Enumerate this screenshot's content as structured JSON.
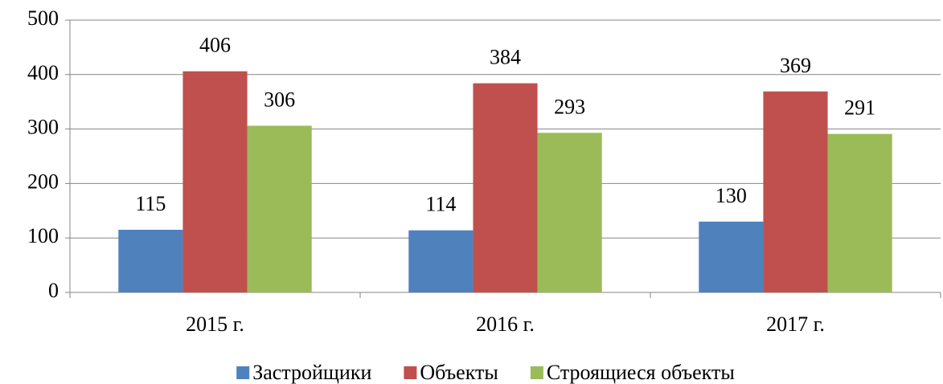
{
  "chart_data": {
    "type": "bar",
    "categories": [
      "2015 г.",
      "2016 г.",
      "2017 г."
    ],
    "series": [
      {
        "name": "Застройщики",
        "color": "#4f81bd",
        "values": [
          115,
          114,
          130
        ]
      },
      {
        "name": "Объекты",
        "color": "#c0504d",
        "values": [
          406,
          384,
          369
        ]
      },
      {
        "name": "Строящиеся объекты",
        "color": "#9bbb59",
        "values": [
          306,
          293,
          291
        ]
      }
    ],
    "ylim": [
      0,
      500
    ],
    "yticks": [
      0,
      100,
      200,
      300,
      400,
      500
    ],
    "grid": true,
    "legend": "bottom"
  }
}
